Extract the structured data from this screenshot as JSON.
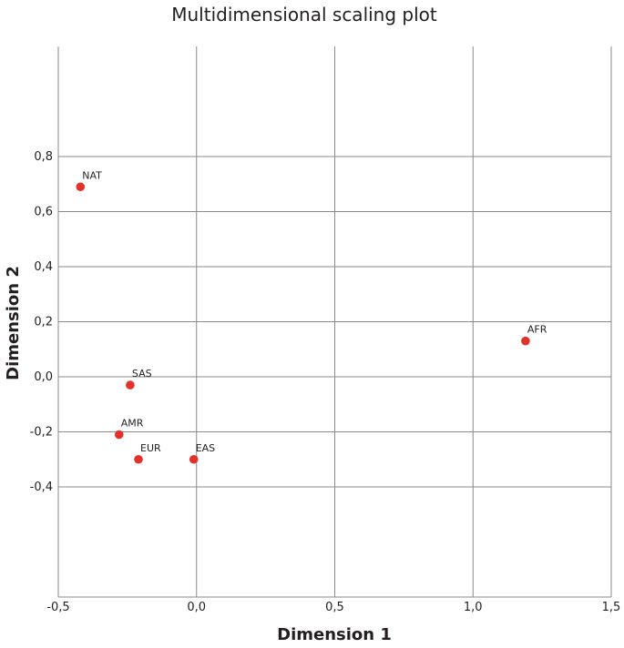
{
  "chart_data": {
    "type": "scatter",
    "title": "Multidimensional scaling plot",
    "xlabel": "Dimension 1",
    "ylabel": "Dimension 2",
    "xlim": [
      -0.5,
      1.5
    ],
    "ylim": [
      -0.8,
      1.2
    ],
    "x_ticks": [
      -0.5,
      0.0,
      0.5,
      1.0,
      1.5
    ],
    "x_tick_labels": [
      "-0,5",
      "0,0",
      "0,5",
      "1,0",
      "1,5"
    ],
    "y_ticks": [
      -0.4,
      -0.2,
      0.0,
      0.2,
      0.4,
      0.6,
      0.8
    ],
    "y_tick_labels": [
      "-0,4",
      "-0,2",
      "0,0",
      "0,2",
      "0,4",
      "0,6",
      "0,8"
    ],
    "grid": true,
    "marker_color": "#e2332a",
    "points": [
      {
        "label": "NAT",
        "x": -0.42,
        "y": 0.69
      },
      {
        "label": "AFR",
        "x": 1.19,
        "y": 0.13
      },
      {
        "label": "SAS",
        "x": -0.24,
        "y": -0.03
      },
      {
        "label": "AMR",
        "x": -0.28,
        "y": -0.21
      },
      {
        "label": "EUR",
        "x": -0.21,
        "y": -0.3
      },
      {
        "label": "EAS",
        "x": -0.01,
        "y": -0.3
      }
    ]
  }
}
